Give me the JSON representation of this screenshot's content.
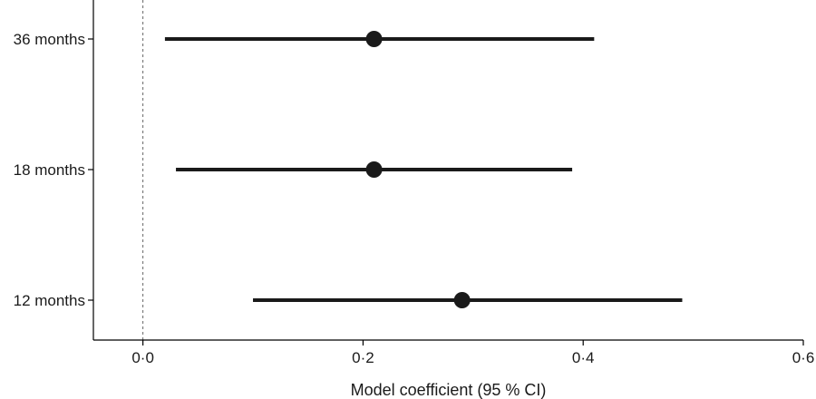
{
  "chart_data": {
    "type": "forest",
    "xlabel": "Model coefficient (95 % CI)",
    "xlim": [
      -0.045,
      0.6
    ],
    "xticks": [
      {
        "value": 0.0,
        "label": "0·0"
      },
      {
        "value": 0.2,
        "label": "0·2"
      },
      {
        "value": 0.4,
        "label": "0·4"
      },
      {
        "value": 0.6,
        "label": "0·6"
      }
    ],
    "reference_line": 0.0,
    "rows": [
      {
        "label": "36 months",
        "estimate": 0.21,
        "lower": 0.02,
        "upper": 0.41
      },
      {
        "label": "18 months",
        "estimate": 0.21,
        "lower": 0.03,
        "upper": 0.39
      },
      {
        "label": "12 months",
        "estimate": 0.29,
        "lower": 0.1,
        "upper": 0.49
      }
    ],
    "colors": {
      "marks": "#1a1a1a",
      "reference_line": "#666666",
      "axis": "#000000"
    },
    "grid": false
  }
}
